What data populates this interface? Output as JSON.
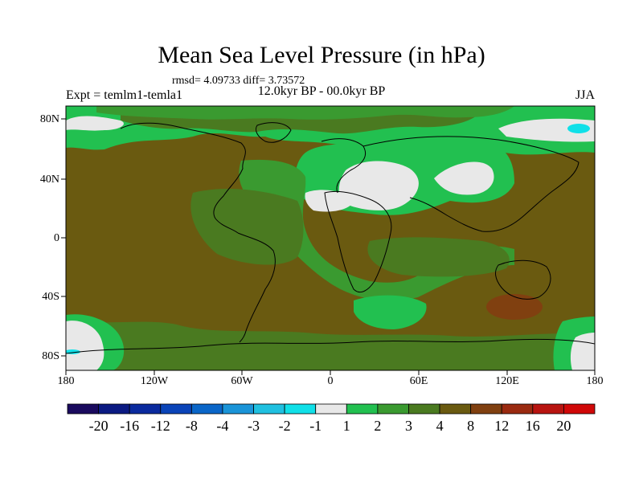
{
  "title": "Mean Sea Level Pressure (in hPa)",
  "stats": "rmsd= 4.09733  diff= 3.73572",
  "experiment": "Expt = temlm1-temla1",
  "period": "12.0kyr BP - 00.0kyr BP",
  "season": "JJA",
  "lat_ticks": [
    "80N",
    "40N",
    "0",
    "40S",
    "80S"
  ],
  "lon_ticks": [
    "180",
    "120W",
    "60W",
    "0",
    "60E",
    "120E",
    "180"
  ],
  "colorbar": {
    "labels": [
      "-20",
      "-16",
      "-12",
      "-8",
      "-4",
      "-3",
      "-2",
      "-1",
      "1",
      "2",
      "3",
      "4",
      "8",
      "12",
      "16",
      "20"
    ],
    "colors": [
      "#1a0a5e",
      "#0b1a82",
      "#0a2a9e",
      "#0a44b8",
      "#0a66c8",
      "#1a94d8",
      "#20c0e0",
      "#10e0e8",
      "#e8e8e8",
      "#22c050",
      "#3a9a30",
      "#4a7a20",
      "#6a5a10",
      "#804010",
      "#9a2a10",
      "#b81410",
      "#d00808"
    ]
  },
  "colors": {
    "ocean_base": "#6a5a10",
    "strong_positive": "#804010",
    "light_green": "#22c050",
    "mid_green": "#3a9a30",
    "dark_green": "#4a7a20",
    "neutral": "#e8e8e8",
    "light_blue": "#10e0e8"
  }
}
